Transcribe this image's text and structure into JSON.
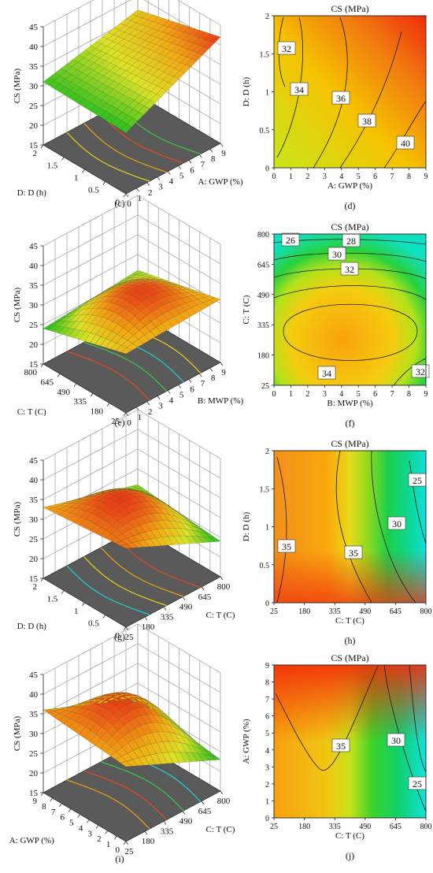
{
  "chart_data": [
    {
      "panel_label": "(c)",
      "type": "surface3d",
      "surface_colors": [
        "#55c61b",
        "#d8e220",
        "#f1a70e",
        "#ea4b12"
      ],
      "zlabel": "CS (MPa)",
      "z_ticks": [
        "15",
        "20",
        "25",
        "30",
        "35",
        "40",
        "45"
      ],
      "zlim": [
        15,
        45
      ],
      "x": {
        "label": "A: GWP (%)",
        "ticks": [
          "0",
          "1",
          "2",
          "3",
          "4",
          "5",
          "6",
          "7",
          "8",
          "9"
        ],
        "range": [
          0,
          9
        ]
      },
      "y": {
        "label": "D: D (h)",
        "ticks": [
          "0",
          "0.5",
          "1",
          "1.5",
          "2"
        ],
        "range": [
          0,
          2
        ]
      },
      "corner_values": {
        "x_min_y_min": 30.5,
        "x_max_y_min": 42,
        "x_min_y_max": 31,
        "x_max_y_max": 36.5
      }
    },
    {
      "panel_label": "(d)",
      "type": "contour",
      "title": "CS (MPa)",
      "xlabel": "A: GWP (%)",
      "ylabel": "D: D (h)",
      "x_ticks": [
        "0",
        "1",
        "2",
        "3",
        "4",
        "5",
        "6",
        "7",
        "8",
        "9"
      ],
      "y_ticks": [
        "0",
        "0.5",
        "1",
        "1.5",
        "2"
      ],
      "xlim": [
        0,
        9
      ],
      "ylim": [
        0,
        2
      ],
      "color_range": [
        30,
        42
      ],
      "contour_labels": [
        "32",
        "34",
        "36",
        "38",
        "40"
      ]
    },
    {
      "panel_label": "(e)",
      "type": "surface3d",
      "zlabel": "CS (MPa)",
      "z_ticks": [
        "15",
        "20",
        "25",
        "30",
        "35",
        "40",
        "45"
      ],
      "zlim": [
        15,
        45
      ],
      "x": {
        "label": "B: MWP (%)",
        "ticks": [
          "0",
          "1",
          "2",
          "3",
          "4",
          "5",
          "6",
          "7",
          "8",
          "9"
        ],
        "range": [
          0,
          9
        ]
      },
      "y": {
        "label": "C: T (C)",
        "ticks": [
          "25",
          "180",
          "335",
          "490",
          "645",
          "800"
        ],
        "range": [
          25,
          800
        ]
      },
      "corner_values": {
        "x_min_y_min": 30,
        "x_max_y_min": 31,
        "x_min_y_max": 24,
        "x_max_y_max": 26
      },
      "peak": 34.5
    },
    {
      "panel_label": "(f)",
      "type": "contour",
      "title": "CS (MPa)",
      "xlabel": "B: MWP (%)",
      "ylabel": "C: T (C)",
      "x_ticks": [
        "0",
        "1",
        "2",
        "3",
        "4",
        "5",
        "6",
        "7",
        "8",
        "9"
      ],
      "y_ticks": [
        "25",
        "180",
        "335",
        "490",
        "645",
        "800"
      ],
      "xlim": [
        0,
        9
      ],
      "ylim": [
        25,
        800
      ],
      "color_range": [
        24,
        35
      ],
      "contour_labels": [
        "26",
        "28",
        "30",
        "32",
        "34",
        "32"
      ]
    },
    {
      "panel_label": "(g)",
      "type": "surface3d",
      "zlabel": "CS (MPa)",
      "z_ticks": [
        "15",
        "20",
        "25",
        "30",
        "35",
        "40",
        "45"
      ],
      "zlim": [
        15,
        45
      ],
      "x": {
        "label": "C: T (C)",
        "ticks": [
          "25",
          "180",
          "335",
          "490",
          "645",
          "800"
        ],
        "range": [
          25,
          800
        ]
      },
      "y": {
        "label": "D: D (h)",
        "ticks": [
          "0",
          "0.5",
          "1",
          "1.5",
          "2"
        ],
        "range": [
          0,
          2
        ]
      },
      "corner_values": {
        "x_min_y_min": 35,
        "x_max_y_min": 24,
        "x_min_y_max": 33,
        "x_max_y_max": 26
      },
      "peak": 37
    },
    {
      "panel_label": "(h)",
      "type": "contour",
      "title": "CS (MPa)",
      "xlabel": "C: T (C)",
      "ylabel": "D: D (h)",
      "x_ticks": [
        "25",
        "180",
        "335",
        "490",
        "645",
        "800"
      ],
      "y_ticks": [
        "0",
        "0.5",
        "1",
        "1.5",
        "2"
      ],
      "xlim": [
        25,
        800
      ],
      "ylim": [
        0,
        2
      ],
      "color_range": [
        23,
        37
      ],
      "contour_labels": [
        "35",
        "35",
        "30",
        "25"
      ]
    },
    {
      "panel_label": "(i)",
      "type": "surface3d",
      "zlabel": "CS (MPa)",
      "z_ticks": [
        "15",
        "20",
        "25",
        "30",
        "35",
        "40",
        "45"
      ],
      "zlim": [
        15,
        45
      ],
      "x": {
        "label": "C: T (C)",
        "ticks": [
          "25",
          "180",
          "335",
          "490",
          "645",
          "800"
        ],
        "range": [
          25,
          800
        ]
      },
      "y": {
        "label": "A: GWP (%)",
        "ticks": [
          "0",
          "1",
          "2",
          "3",
          "4",
          "5",
          "6",
          "7",
          "8",
          "9"
        ],
        "range": [
          0,
          9
        ]
      },
      "corner_values": {
        "x_min_y_min": 34,
        "x_max_y_min": 23,
        "x_min_y_max": 36,
        "x_max_y_max": 26
      },
      "peak": 40
    },
    {
      "panel_label": "(j)",
      "type": "contour",
      "title": "CS (MPa)",
      "xlabel": "C: T (C)",
      "ylabel": "A: GWP (%)",
      "x_ticks": [
        "25",
        "180",
        "335",
        "490",
        "645",
        "800"
      ],
      "y_ticks": [
        "0",
        "1",
        "2",
        "3",
        "4",
        "5",
        "6",
        "7",
        "8",
        "9"
      ],
      "xlim": [
        25,
        800
      ],
      "ylim": [
        0,
        9
      ],
      "color_range": [
        23,
        41
      ],
      "contour_labels": [
        "35",
        "30",
        "25"
      ]
    }
  ]
}
